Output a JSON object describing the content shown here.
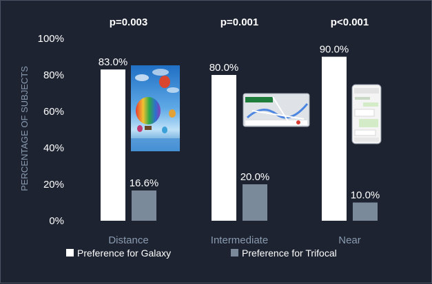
{
  "chart_data": {
    "type": "bar",
    "title": "",
    "xlabel": "",
    "ylabel": "PERCENTAGE OF SUBJECTS",
    "ylim": [
      0,
      100
    ],
    "yticks": [
      "0%",
      "20%",
      "40%",
      "60%",
      "80%",
      "100%"
    ],
    "categories": [
      "Distance",
      "Intermediate",
      "Near"
    ],
    "series": [
      {
        "name": "Preference for Galaxy",
        "values": [
          83.0,
          80.0,
          90.0
        ],
        "labels": [
          "83.0%",
          "80.0%",
          "90.0%"
        ],
        "color": "#ffffff"
      },
      {
        "name": "Preference for Trifocal",
        "values": [
          16.6,
          20.0,
          10.0
        ],
        "labels": [
          "16.6%",
          "20.0%",
          "10.0%"
        ],
        "color": "#7b8a9a"
      }
    ],
    "pvalues": [
      "p=0.003",
      "p=0.001",
      "p<0.001"
    ],
    "legend_position": "bottom",
    "grid": false,
    "illustrations": [
      "hot-air-balloons-photo",
      "map-navigation-screenshot",
      "phone-chat-screenshot"
    ]
  },
  "colors": {
    "background": "#1d2331",
    "galaxy": "#ffffff",
    "trifocal": "#7b8a9a",
    "category_text": "#8a9bb0"
  }
}
